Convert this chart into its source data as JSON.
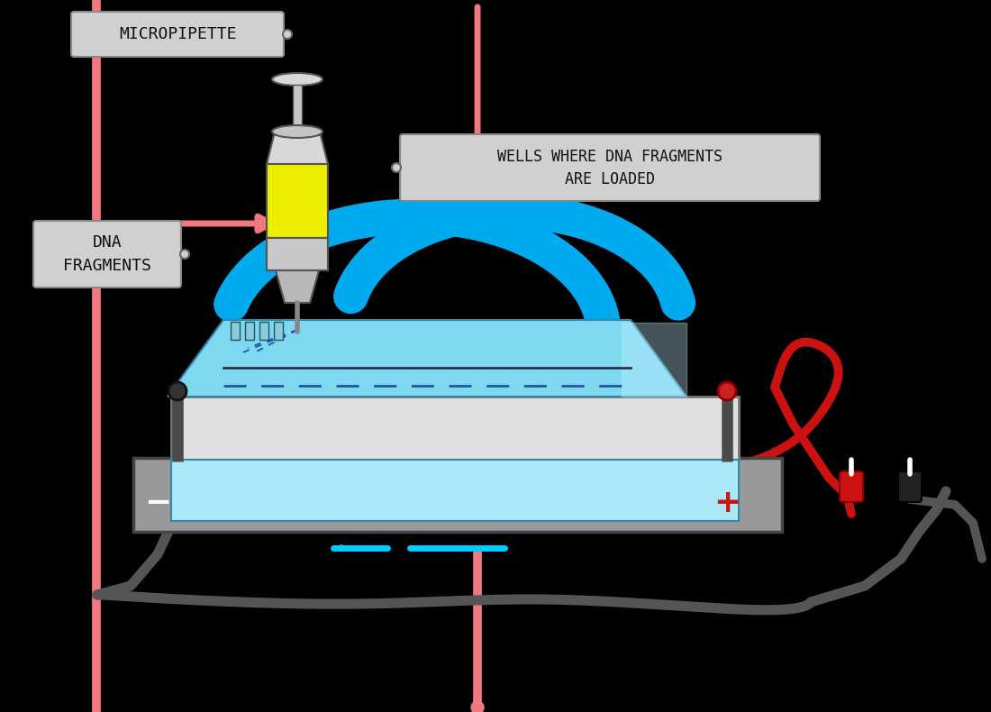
{
  "bg_color": "#000000",
  "label_bg": "#d0d0d0",
  "gel_top_color": "#7dd8f0",
  "gel_front_color": "#aae8f8",
  "gel_highlight": "#c8f0ff",
  "tray_gray": "#999999",
  "tray_light": "#e0e0e0",
  "tray_base_gray": "#888888",
  "pink": "#f07880",
  "blue_arrow": "#00aaee",
  "wire_dark_gray": "#555555",
  "wire_red": "#cc1111",
  "plus_color": "#cc1111",
  "syringe_yellow": "#eeee00",
  "syringe_gray": "#cccccc",
  "text_dark": "#111111",
  "white": "#ffffff",
  "electrode_gray": "#555555",
  "electrode_pos_red": "#cc2222",
  "micropipette_text": "MICROPIPETTE",
  "dna_text": "DNA\nFRAGMENTS",
  "wells_text": "WELLS WHERE DNA FRAGMENTS\nARE LOADED",
  "minus_sign": "−",
  "plus_sign": "+"
}
